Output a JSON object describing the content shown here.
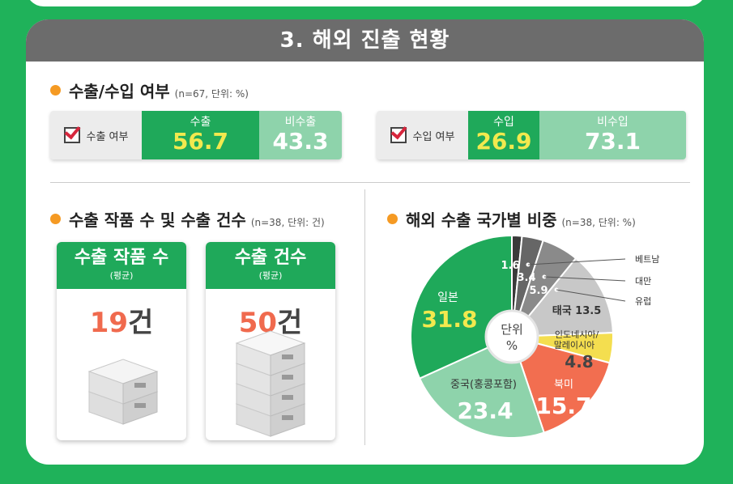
{
  "section_title": "3. 해외 진출 현황",
  "export_import": {
    "title": "수출/수입 여부",
    "note": "(n=67, 단위: %)",
    "export": {
      "label": "수출 여부",
      "yes_label": "수출",
      "yes_value": "56.7",
      "no_label": "비수출",
      "no_value": "43.3"
    },
    "import": {
      "label": "수입 여부",
      "yes_label": "수입",
      "yes_value": "26.9",
      "no_label": "비수입",
      "no_value": "73.1"
    }
  },
  "export_counts": {
    "title": "수출 작품 수 및 수출 건수",
    "note": "(n=38, 단위: 건)",
    "works": {
      "title": "수출 작품 수",
      "sub": "(평균)",
      "value": "19",
      "unit": "건"
    },
    "cases": {
      "title": "수출 건수",
      "sub": "(평균)",
      "value": "50",
      "unit": "건"
    }
  },
  "country_share": {
    "title": "해외 수출 국가별 비중",
    "note": "(n=38, 단위: %)"
  },
  "chart_data": {
    "type": "pie",
    "center_label": "단위\n%",
    "slices": [
      {
        "label": "베트남",
        "value": 1.6,
        "color": "#3a3a3a"
      },
      {
        "label": "대만",
        "value": 3.4,
        "color": "#666666"
      },
      {
        "label": "유럽",
        "value": 5.9,
        "color": "#8a8a8a"
      },
      {
        "label": "태국",
        "value": 13.5,
        "color": "#c8c8c8"
      },
      {
        "label": "인도네시아/말레이시아",
        "value": 4.8,
        "color": "#f4de4f"
      },
      {
        "label": "북미",
        "value": 15.7,
        "color": "#f26e50"
      },
      {
        "label": "중국(홍콩포함)",
        "value": 23.4,
        "color": "#8ed3ab"
      },
      {
        "label": "일본",
        "value": 31.8,
        "color": "#1fa95a"
      }
    ]
  }
}
